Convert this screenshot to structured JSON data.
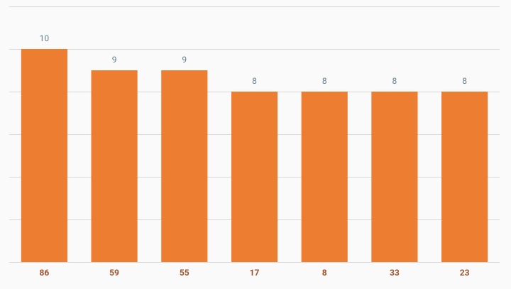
{
  "chart_data": {
    "type": "bar",
    "categories": [
      "86",
      "59",
      "55",
      "17",
      "8",
      "33",
      "23"
    ],
    "values": [
      10,
      9,
      9,
      8,
      8,
      8,
      8
    ],
    "color": "#ed7d31",
    "ylim": [
      0,
      12
    ],
    "yticks": [
      0,
      2,
      4,
      6,
      8,
      10,
      12
    ],
    "grid": true
  }
}
